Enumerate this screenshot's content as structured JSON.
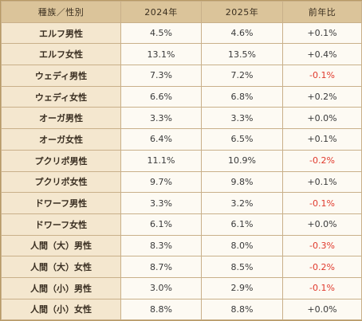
{
  "table": {
    "headers": [
      "種族／性別",
      "2024年",
      "2025年",
      "前年比"
    ],
    "rows": [
      {
        "label": "エルフ男性",
        "y2024": "4.5%",
        "y2025": "4.6%",
        "diff": "+0.1%",
        "negative": false
      },
      {
        "label": "エルフ女性",
        "y2024": "13.1%",
        "y2025": "13.5%",
        "diff": "+0.4%",
        "negative": false
      },
      {
        "label": "ウェディ男性",
        "y2024": "7.3%",
        "y2025": "7.2%",
        "diff": "-0.1%",
        "negative": true
      },
      {
        "label": "ウェディ女性",
        "y2024": "6.6%",
        "y2025": "6.8%",
        "diff": "+0.2%",
        "negative": false
      },
      {
        "label": "オーガ男性",
        "y2024": "3.3%",
        "y2025": "3.3%",
        "diff": "+0.0%",
        "negative": false
      },
      {
        "label": "オーガ女性",
        "y2024": "6.4%",
        "y2025": "6.5%",
        "diff": "+0.1%",
        "negative": false
      },
      {
        "label": "プクリポ男性",
        "y2024": "11.1%",
        "y2025": "10.9%",
        "diff": "-0.2%",
        "negative": true
      },
      {
        "label": "プクリポ女性",
        "y2024": "9.7%",
        "y2025": "9.8%",
        "diff": "+0.1%",
        "negative": false
      },
      {
        "label": "ドワーフ男性",
        "y2024": "3.3%",
        "y2025": "3.2%",
        "diff": "-0.1%",
        "negative": true
      },
      {
        "label": "ドワーフ女性",
        "y2024": "6.1%",
        "y2025": "6.1%",
        "diff": "+0.0%",
        "negative": false
      },
      {
        "label": "人間（大）男性",
        "y2024": "8.3%",
        "y2025": "8.0%",
        "diff": "-0.3%",
        "negative": true
      },
      {
        "label": "人間（大）女性",
        "y2024": "8.7%",
        "y2025": "8.5%",
        "diff": "-0.2%",
        "negative": true
      },
      {
        "label": "人間（小）男性",
        "y2024": "3.0%",
        "y2025": "2.9%",
        "diff": "-0.1%",
        "negative": true
      },
      {
        "label": "人間（小）女性",
        "y2024": "8.8%",
        "y2025": "8.8%",
        "diff": "+0.0%",
        "negative": false
      }
    ]
  },
  "colors": {
    "header_bg": "#dbc49a",
    "label_bg": "#f4e7cf",
    "value_bg": "#fdfaf3",
    "negative": "#e0392c",
    "border": "#c9b08a"
  }
}
